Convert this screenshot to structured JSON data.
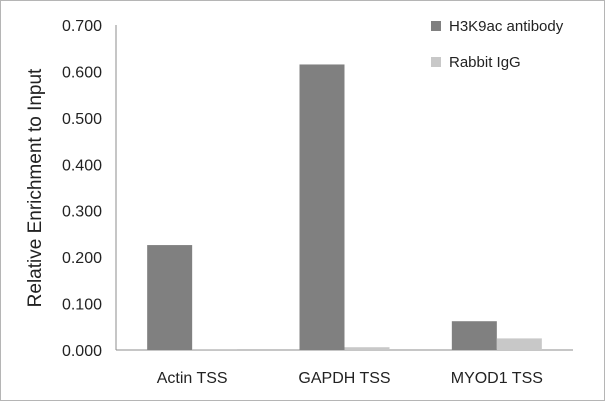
{
  "chart_data": {
    "type": "bar",
    "title": "",
    "xlabel": "",
    "ylabel": "Relative Enrichment to Input",
    "categories": [
      "Actin TSS",
      "GAPDH TSS",
      "MYOD1 TSS"
    ],
    "series": [
      {
        "name": "H3K9ac antibody",
        "values": [
          0.226,
          0.615,
          0.062
        ],
        "color": "#808080"
      },
      {
        "name": "Rabbit IgG",
        "values": [
          0.002,
          0.006,
          0.025
        ],
        "color": "#c8c8c8"
      }
    ],
    "ylim": [
      0,
      0.7
    ],
    "yticks": [
      0,
      0.1,
      0.2,
      0.3,
      0.4,
      0.5,
      0.6,
      0.7
    ],
    "ytick_labels": [
      "0.000",
      "0.100",
      "0.200",
      "0.300",
      "0.400",
      "0.500",
      "0.600",
      "0.700"
    ],
    "grid": false,
    "legend_position": "top-right"
  }
}
